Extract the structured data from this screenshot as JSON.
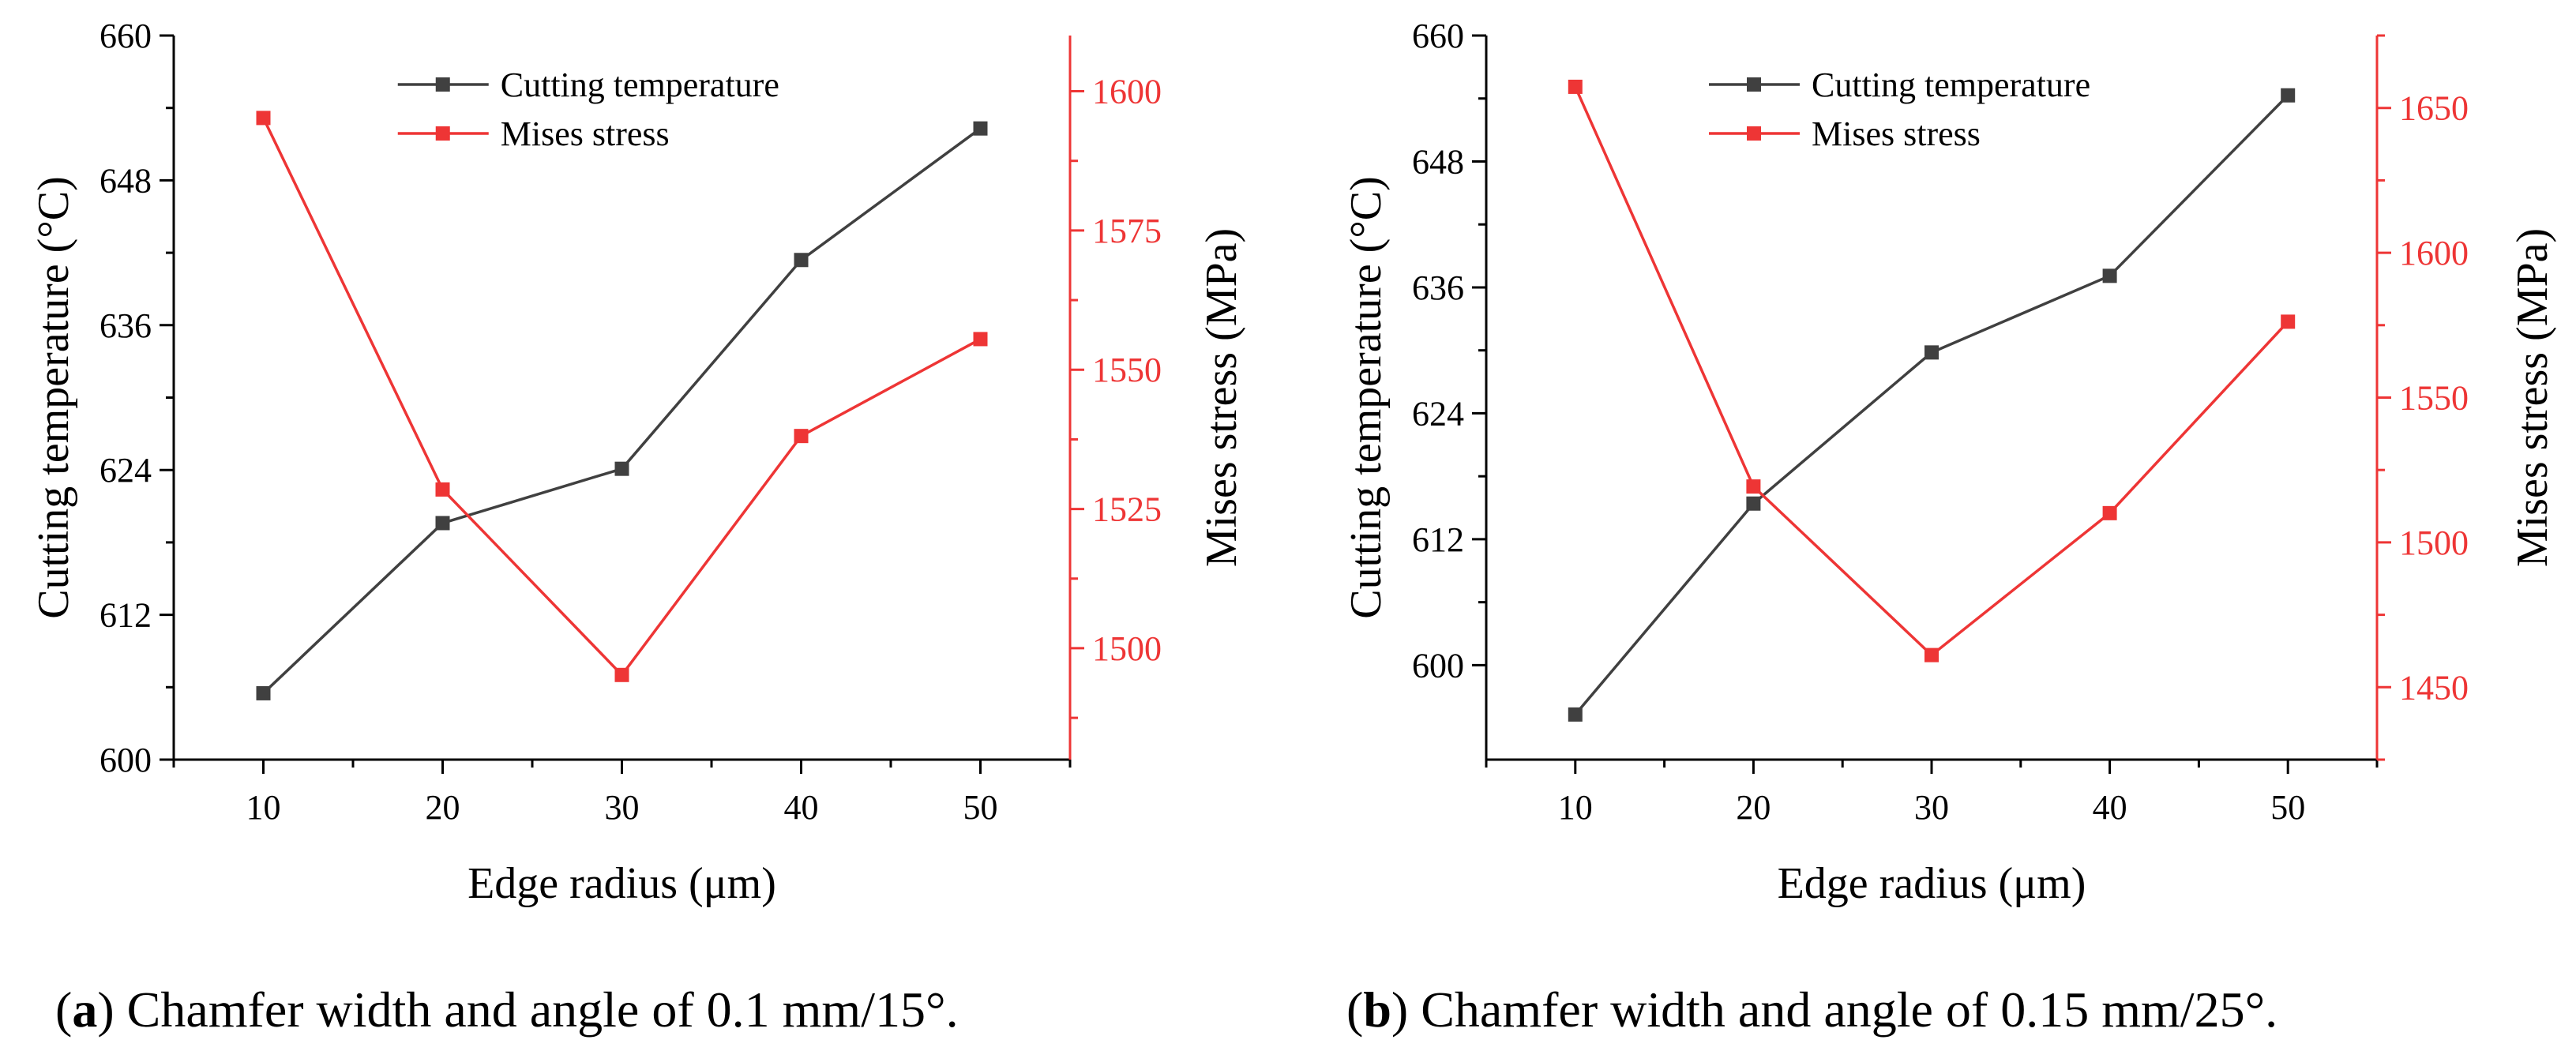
{
  "colors": {
    "temperature": "#404040",
    "stress": "#ee3535",
    "axis": "#000000"
  },
  "chart_data": [
    {
      "type": "line",
      "id": "a",
      "caption_letter": "a",
      "caption_open": "(",
      "caption_text": ") Chamfer width and angle of 0.1 mm/15°.",
      "xlabel": "Edge radius (μm)",
      "ylabel": "Cutting temperature (°C)",
      "y2label": "Mises stress (MPa)",
      "xlim": [
        5,
        55
      ],
      "xticks": [
        10,
        20,
        30,
        40,
        50
      ],
      "ylim": [
        600,
        660
      ],
      "yticks": [
        600,
        612,
        624,
        636,
        648,
        660
      ],
      "y2lim": [
        1480,
        1610
      ],
      "y2ticks": [
        1500,
        1525,
        1550,
        1575,
        1600
      ],
      "x": [
        10,
        20,
        30,
        40,
        50
      ],
      "series": [
        {
          "name": "Cutting temperature",
          "axis": "left",
          "values": [
            605.5,
            619.6,
            624.1,
            641.4,
            652.3
          ]
        },
        {
          "name": "Mises stress",
          "axis": "right",
          "values": [
            1595.2,
            1528.5,
            1495.2,
            1538.1,
            1555.5
          ]
        }
      ],
      "legend": "top-center"
    },
    {
      "type": "line",
      "id": "b",
      "caption_letter": "b",
      "caption_open": "(",
      "caption_text": ") Chamfer width and angle of 0.15 mm/25°.",
      "xlabel": "Edge radius (μm)",
      "ylabel": "Cutting temperature (°C)",
      "y2label": "Mises stress (MPa)",
      "xlim": [
        5,
        55
      ],
      "xticks": [
        10,
        20,
        30,
        40,
        50
      ],
      "ylim": [
        591,
        660
      ],
      "yticks": [
        600,
        612,
        624,
        636,
        648,
        660
      ],
      "y2lim": [
        1425,
        1675
      ],
      "y2ticks": [
        1450,
        1500,
        1550,
        1600,
        1650
      ],
      "x": [
        10,
        20,
        30,
        40,
        50
      ],
      "series": [
        {
          "name": "Cutting temperature",
          "axis": "left",
          "values": [
            595.3,
            615.4,
            629.8,
            637.1,
            654.3
          ]
        },
        {
          "name": "Mises stress",
          "axis": "right",
          "values": [
            1657.3,
            1519.3,
            1461.1,
            1510.1,
            1576.2
          ]
        }
      ],
      "legend": "top-center"
    }
  ]
}
